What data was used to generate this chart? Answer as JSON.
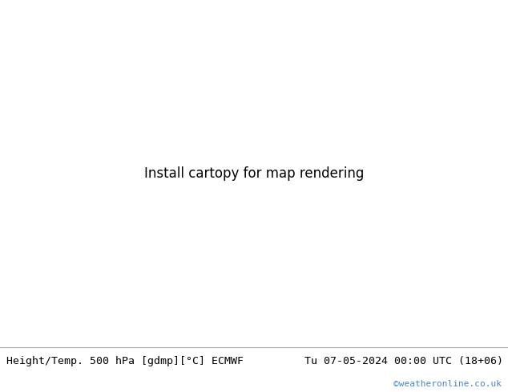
{
  "title_left": "Height/Temp. 500 hPa [gdmp][°C] ECMWF",
  "title_right": "Tu 07-05-2024 00:00 UTC (18+06)",
  "watermark": "©weatheronline.co.uk",
  "bg_color": "#e0e0e0",
  "land_color_green": "#c8e8a0",
  "land_color_gray": "#c0c0c0",
  "ocean_color": "#e0e0e0",
  "bottom_bar_color": "#ffffff",
  "title_fontsize": 9.5,
  "watermark_color": "#4488cc",
  "text_color": "#000000",
  "fig_width": 6.34,
  "fig_height": 4.9,
  "dpi": 100,
  "map_lon_min": 85,
  "map_lon_max": 165,
  "map_lat_min": -18,
  "map_lat_max": 58,
  "contour_lw_thick": 2.2,
  "contour_lw_thin": 1.3,
  "orange": "#ff9900",
  "red": "#ff2222",
  "cyan": "#00cccc",
  "lime": "#88cc00",
  "gray_line": "#888888"
}
